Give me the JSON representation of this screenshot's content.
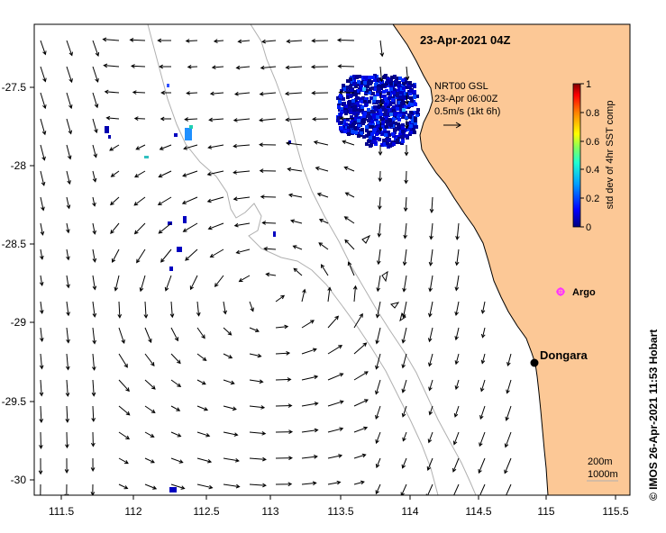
{
  "map": {
    "title": "23-Apr-2021 04Z",
    "current_legend": {
      "line1": "NRT00 GSL",
      "line2": "23-Apr 06:00Z",
      "line3": "0.5m/s (1kt 6h)"
    },
    "colorbar": {
      "label": "std dev of 4hr SST comp",
      "ticks": [
        "1",
        "0.8",
        "0.6",
        "0.4",
        "0.2",
        "0"
      ]
    },
    "x_ticks": [
      "111.5",
      "112",
      "112.5",
      "113",
      "113.5",
      "114",
      "114.5",
      "115",
      "115.5"
    ],
    "y_ticks": [
      "-27.5",
      "-28",
      "-28.5",
      "-29",
      "-29.5",
      "-30"
    ],
    "places": [
      {
        "name": "Dongara",
        "lon": 114.93,
        "lat": -29.25
      }
    ],
    "argo": {
      "label": "Argo",
      "lon": 115.1,
      "lat": -28.8,
      "color": "#ff33ff"
    },
    "contours": {
      "line1": "200m",
      "line2": "1000m"
    },
    "credit": "©  IMOS 26-Apr-2021 11:53 Hobart",
    "colors": {
      "land": "#fcc896",
      "ocean": "#ffffff",
      "bathymetry": "#b0b0b0",
      "arrow": "#000000"
    }
  }
}
